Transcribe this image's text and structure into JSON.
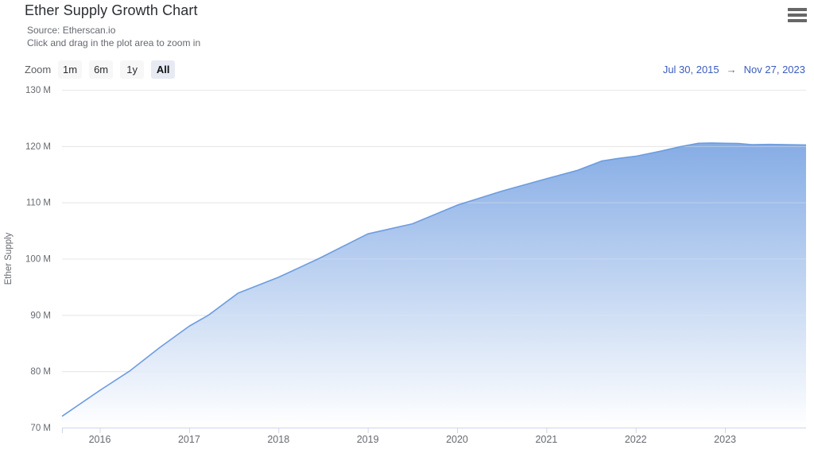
{
  "header": {
    "title": "Ether Supply Growth Chart",
    "source_line": "Source: Etherscan.io",
    "hint_line": "Click and drag in the plot area to zoom in"
  },
  "toolbar": {
    "zoom_label": "Zoom",
    "buttons": [
      {
        "label": "1m",
        "active": false
      },
      {
        "label": "6m",
        "active": false
      },
      {
        "label": "1y",
        "active": false
      },
      {
        "label": "All",
        "active": true
      }
    ],
    "range": {
      "from": "Jul 30, 2015",
      "arrow": "→",
      "to": "Nov 27, 2023"
    }
  },
  "colors": {
    "line": "#6d9ce0",
    "fill_top": "#6f9de0",
    "fill_bottom": "#ffffff",
    "grid": "#e6e6e6",
    "axis": "#ccd6eb",
    "tick_label": "#666a70",
    "range_date": "#3b5cbe",
    "title_text": "#2b2e33"
  },
  "chart_data": {
    "type": "area",
    "title": "Ether Supply Growth Chart",
    "xlabel": "",
    "ylabel": "Ether Supply",
    "legend": "none",
    "grid": "horizontal",
    "xlim": [
      2015.577,
      2023.907
    ],
    "ylim": [
      70,
      130
    ],
    "x_ticks": [
      2016,
      2017,
      2018,
      2019,
      2020,
      2021,
      2022,
      2023
    ],
    "y_ticks": [
      70,
      80,
      90,
      100,
      110,
      120,
      130
    ],
    "y_tick_suffix": " M",
    "x_range_labels": [
      "Jul 30, 2015",
      "Nov 27, 2023"
    ],
    "series": [
      {
        "name": "Ether Supply",
        "unit": "million ETH",
        "x": [
          2015.577,
          2016.0,
          2016.33,
          2016.67,
          2017.0,
          2017.22,
          2017.55,
          2018.0,
          2018.45,
          2019.0,
          2019.5,
          2020.0,
          2020.5,
          2021.0,
          2021.35,
          2021.62,
          2021.8,
          2022.0,
          2022.28,
          2022.5,
          2022.7,
          2022.85,
          2023.0,
          2023.15,
          2023.3,
          2023.5,
          2023.7,
          2023.907
        ],
        "y": [
          72.0,
          76.6,
          80.0,
          84.2,
          88.0,
          90.0,
          93.9,
          96.7,
          100.0,
          104.4,
          106.2,
          109.5,
          112.0,
          114.2,
          115.7,
          117.35,
          117.8,
          118.2,
          119.1,
          119.9,
          120.5,
          120.55,
          120.5,
          120.45,
          120.25,
          120.3,
          120.25,
          120.2
        ]
      }
    ]
  }
}
